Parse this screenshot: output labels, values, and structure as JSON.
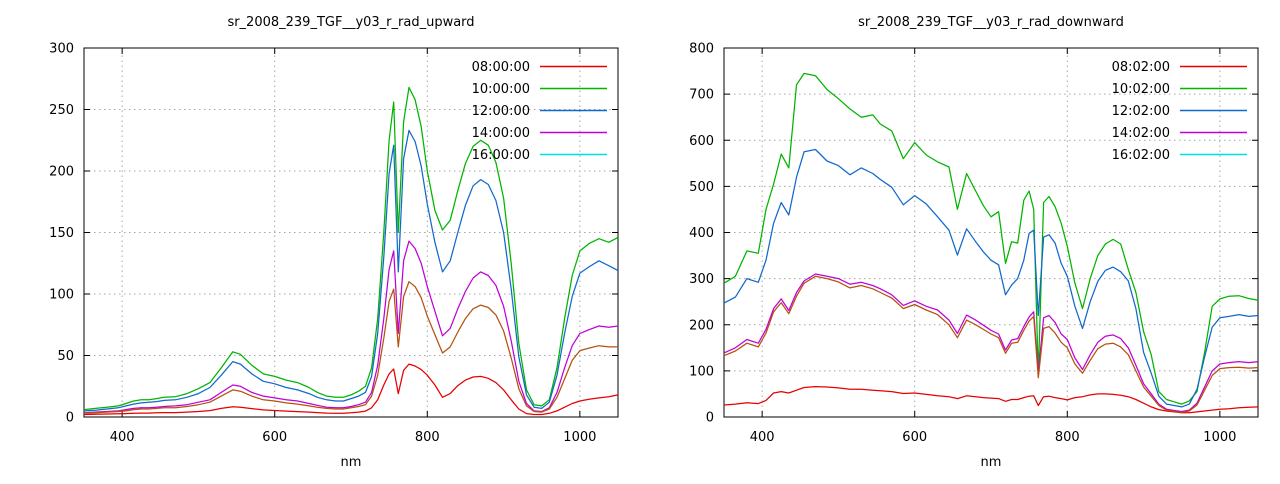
{
  "window": {
    "background": "#ffffff",
    "text_color": "#000000",
    "grid_color": "#a6a6a6",
    "border_color": "#000000"
  },
  "charts": [
    {
      "type": "line",
      "title": "sr_2008_239_TGF__y03_r_rad_upward",
      "xlabel": "nm",
      "x_range": [
        350,
        1050
      ],
      "y_range": [
        0,
        300
      ],
      "x_ticks": [
        400,
        600,
        800,
        1000
      ],
      "y_ticks": [
        0,
        50,
        100,
        150,
        200,
        250,
        300
      ],
      "grid": "dotted",
      "legend_position": "top-right",
      "x": [
        350,
        365,
        380,
        395,
        405,
        415,
        425,
        435,
        445,
        455,
        470,
        485,
        500,
        515,
        530,
        545,
        555,
        570,
        585,
        600,
        615,
        630,
        645,
        656,
        668,
        680,
        690,
        700,
        710,
        719,
        727,
        735,
        743,
        750,
        756,
        762,
        769,
        776,
        784,
        792,
        800,
        810,
        820,
        830,
        840,
        850,
        860,
        870,
        880,
        890,
        900,
        910,
        920,
        930,
        940,
        950,
        960,
        970,
        980,
        990,
        1000,
        1012,
        1025,
        1038,
        1050
      ],
      "series": [
        {
          "name": "08:00:00",
          "color": "#e60000",
          "values": [
            2,
            2.2,
            2.4,
            2.6,
            2.8,
            3,
            3.2,
            3.2,
            3.4,
            3.6,
            3.6,
            4,
            4.5,
            5.2,
            7,
            8.3,
            8,
            6.8,
            5.8,
            5.3,
            4.8,
            4.4,
            4,
            3.6,
            3.2,
            3,
            3,
            3.4,
            4,
            4.8,
            7.5,
            14,
            26,
            35,
            39,
            19,
            38,
            43,
            41.5,
            38.5,
            34,
            26,
            16,
            19,
            25.5,
            30,
            32.5,
            33,
            31.5,
            28,
            22,
            14,
            6.5,
            2.8,
            2,
            2,
            3,
            5,
            8,
            11,
            13,
            14.5,
            15.5,
            16.5,
            18
          ]
        },
        {
          "name": "10:00:00",
          "color": "#00b400",
          "values": [
            6,
            7,
            8,
            9,
            11,
            13,
            14,
            14,
            15,
            16,
            16.5,
            19,
            23,
            28,
            40,
            53,
            51,
            42,
            35,
            33,
            30,
            28,
            24,
            20,
            17,
            16,
            16,
            18,
            21,
            25,
            40,
            80,
            150,
            225,
            256,
            150,
            240,
            268,
            258,
            236,
            200,
            168,
            152,
            160,
            184,
            206,
            220,
            225,
            221,
            207,
            178,
            125,
            60,
            22,
            10,
            9,
            14,
            40,
            80,
            115,
            135,
            141,
            145,
            142,
            146
          ]
        },
        {
          "name": "12:00:00",
          "color": "#1169cd",
          "values": [
            5,
            5.5,
            6.5,
            7.5,
            9,
            10.5,
            11.5,
            12,
            12.5,
            13.5,
            14,
            16,
            19,
            24,
            34,
            45,
            43,
            35,
            29,
            27,
            24,
            22,
            19,
            16,
            14,
            13,
            13,
            15,
            17,
            20,
            33,
            68,
            130,
            198,
            221,
            118,
            210,
            233,
            224,
            204,
            173,
            142,
            118,
            127,
            150,
            172,
            188,
            193,
            189,
            176,
            150,
            104,
            49,
            18,
            8,
            7,
            12,
            34,
            68,
            98,
            117,
            122,
            127,
            123,
            119
          ]
        },
        {
          "name": "14:00:00",
          "color": "#c000d8",
          "values": [
            3.5,
            4,
            4.5,
            5,
            6,
            7,
            7.5,
            7.5,
            8,
            8.5,
            9,
            10,
            12,
            14,
            20,
            26,
            25,
            20,
            17,
            15.5,
            14,
            13,
            11,
            9.5,
            8,
            7.5,
            7.5,
            8.5,
            10,
            12,
            20,
            42,
            80,
            120,
            135,
            68,
            127,
            143,
            137,
            125,
            106,
            86,
            66,
            72,
            88,
            102,
            113,
            118,
            115,
            107,
            90,
            62,
            29,
            11,
            5,
            4.5,
            7.5,
            20,
            40,
            58,
            68,
            71,
            74,
            73,
            74
          ]
        },
        {
          "name": "16:00:00",
          "color": "#b5520f",
          "legend_color": "#00e0e0",
          "values": [
            3,
            3.5,
            4,
            4.5,
            5,
            6,
            6.5,
            6.5,
            7,
            7.5,
            7.5,
            8.5,
            10,
            12,
            17,
            22,
            21,
            17,
            14,
            13,
            11.5,
            10.5,
            9,
            8,
            7,
            6.5,
            6.5,
            7.5,
            8.5,
            10,
            17,
            34,
            64,
            94,
            104,
            57,
            98,
            110,
            106,
            97,
            82,
            67,
            52,
            57,
            69,
            80,
            88,
            91,
            89,
            83,
            70,
            48,
            23,
            9,
            4.5,
            4,
            6.5,
            16,
            31,
            46,
            54,
            56,
            58,
            57,
            57
          ]
        }
      ]
    },
    {
      "type": "line",
      "title": "sr_2008_239_TGF__y03_r_rad_downward",
      "xlabel": "nm",
      "x_range": [
        350,
        1050
      ],
      "y_range": [
        0,
        800
      ],
      "x_ticks": [
        400,
        600,
        800,
        1000
      ],
      "y_ticks": [
        0,
        100,
        200,
        300,
        400,
        500,
        600,
        700,
        800
      ],
      "grid": "dotted",
      "legend_position": "top-right",
      "x": [
        350,
        365,
        380,
        395,
        405,
        415,
        425,
        435,
        445,
        455,
        470,
        485,
        500,
        515,
        530,
        545,
        555,
        570,
        585,
        600,
        615,
        630,
        645,
        656,
        668,
        680,
        690,
        700,
        710,
        719,
        727,
        735,
        743,
        750,
        756,
        762,
        769,
        776,
        784,
        792,
        800,
        810,
        820,
        830,
        840,
        850,
        860,
        870,
        880,
        890,
        900,
        910,
        920,
        930,
        940,
        950,
        960,
        970,
        980,
        990,
        1000,
        1012,
        1025,
        1038,
        1050
      ],
      "series": [
        {
          "name": "08:02:00",
          "color": "#e60000",
          "values": [
            26,
            28,
            31,
            29,
            36,
            52,
            55,
            52,
            58,
            64,
            66,
            65,
            63,
            60,
            60,
            58,
            57,
            55,
            51,
            52,
            49,
            46,
            44,
            40,
            46,
            44,
            42,
            41,
            40,
            34,
            38,
            38,
            42,
            45,
            46,
            25,
            44,
            45,
            42,
            40,
            37,
            42,
            44,
            48,
            50,
            50,
            49,
            47,
            44,
            38,
            30,
            22,
            16,
            13,
            11,
            9,
            9,
            11,
            13,
            15,
            17,
            18,
            20,
            21,
            22
          ]
        },
        {
          "name": "10:02:00",
          "color": "#00b400",
          "values": [
            290,
            305,
            360,
            355,
            450,
            505,
            570,
            540,
            720,
            745,
            740,
            710,
            690,
            668,
            650,
            655,
            635,
            620,
            560,
            595,
            568,
            553,
            542,
            450,
            528,
            490,
            458,
            434,
            445,
            333,
            380,
            377,
            470,
            490,
            450,
            92,
            465,
            478,
            456,
            420,
            370,
            290,
            235,
            300,
            350,
            375,
            385,
            375,
            320,
            270,
            185,
            135,
            55,
            38,
            33,
            28,
            35,
            55,
            140,
            240,
            256,
            262,
            263,
            257,
            253
          ]
        },
        {
          "name": "12:02:00",
          "color": "#1169cd",
          "values": [
            247,
            260,
            300,
            292,
            340,
            420,
            465,
            438,
            520,
            575,
            580,
            555,
            545,
            525,
            540,
            528,
            515,
            498,
            460,
            480,
            462,
            434,
            405,
            351,
            408,
            380,
            358,
            340,
            330,
            265,
            286,
            300,
            340,
            398,
            405,
            220,
            390,
            395,
            377,
            333,
            305,
            240,
            192,
            250,
            294,
            318,
            325,
            315,
            295,
            235,
            140,
            95,
            45,
            28,
            25,
            22,
            28,
            60,
            130,
            195,
            215,
            218,
            222,
            218,
            220
          ]
        },
        {
          "name": "14:02:00",
          "color": "#c000d8",
          "values": [
            139,
            150,
            168,
            160,
            190,
            235,
            256,
            231,
            270,
            295,
            310,
            305,
            300,
            288,
            292,
            285,
            278,
            265,
            242,
            252,
            240,
            232,
            210,
            181,
            221,
            210,
            199,
            188,
            180,
            145,
            167,
            170,
            196,
            217,
            228,
            95,
            215,
            220,
            205,
            180,
            168,
            128,
            103,
            135,
            162,
            175,
            178,
            170,
            150,
            112,
            72,
            50,
            28,
            17,
            14,
            12,
            15,
            30,
            65,
            100,
            115,
            118,
            120,
            118,
            120
          ]
        },
        {
          "name": "16:02:00",
          "color": "#b5520f",
          "legend_color": "#00e0e0",
          "values": [
            133,
            143,
            160,
            152,
            182,
            228,
            248,
            224,
            262,
            290,
            305,
            300,
            293,
            280,
            285,
            278,
            270,
            258,
            235,
            244,
            232,
            222,
            200,
            172,
            210,
            200,
            190,
            180,
            172,
            138,
            160,
            162,
            188,
            208,
            218,
            85,
            192,
            196,
            182,
            162,
            150,
            115,
            95,
            123,
            148,
            158,
            160,
            152,
            135,
            100,
            65,
            45,
            25,
            15,
            12,
            10,
            13,
            26,
            58,
            90,
            105,
            107,
            108,
            106,
            107
          ]
        }
      ]
    }
  ]
}
